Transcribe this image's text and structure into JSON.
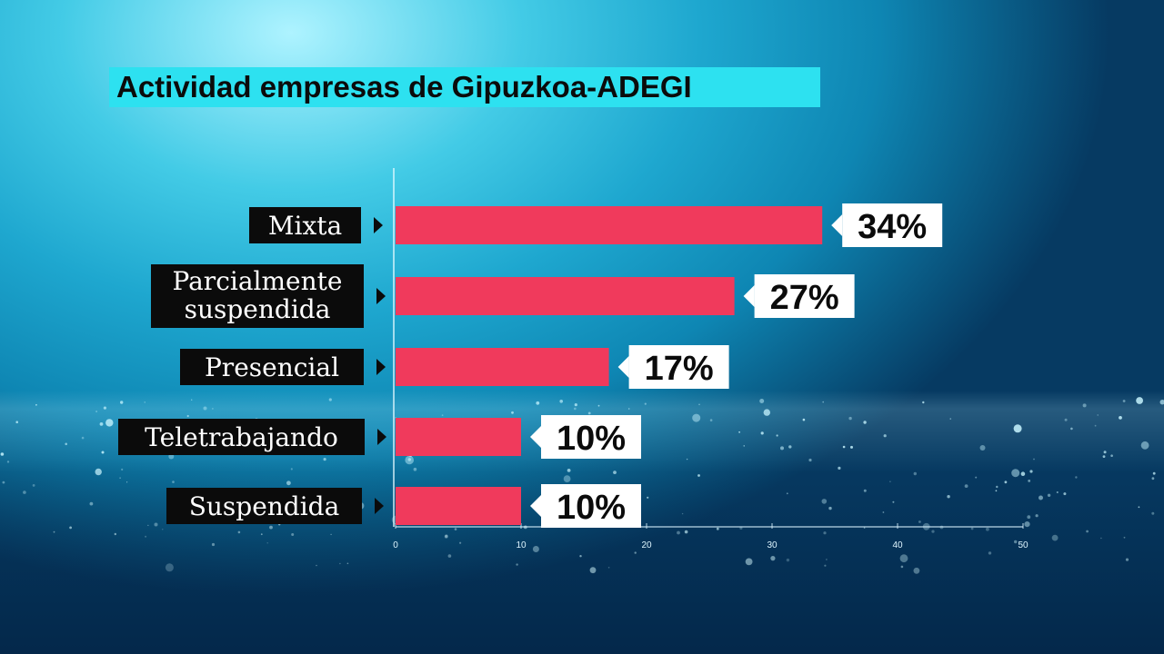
{
  "chart_data": {
    "type": "bar",
    "orientation": "horizontal",
    "title": "Actividad empresas de Gipuzkoa-ADEGI",
    "categories": [
      "Mixta",
      "Parcialmente suspendida",
      "Presencial",
      "Teletrabajando",
      "Suspendida"
    ],
    "category_lines": [
      [
        "Mixta"
      ],
      [
        "Parcialmente",
        "suspendida"
      ],
      [
        "Presencial"
      ],
      [
        "Teletrabajando"
      ],
      [
        "Suspendida"
      ]
    ],
    "values": [
      34,
      27,
      17,
      10,
      10
    ],
    "value_labels": [
      "34%",
      "27%",
      "17%",
      "10%",
      "10%"
    ],
    "xlim": [
      0,
      50
    ],
    "x_ticks": [
      0,
      10,
      20,
      30,
      40,
      50
    ],
    "x_tick_labels": [
      "0",
      "10",
      "20",
      "30",
      "40",
      "50"
    ],
    "xlabel": "",
    "ylabel": "",
    "grid": false,
    "colors": {
      "bar": "#f03a5c",
      "title_box": "#2de1f0",
      "label_box": "#0b0b0b",
      "value_box": "#ffffff"
    }
  }
}
